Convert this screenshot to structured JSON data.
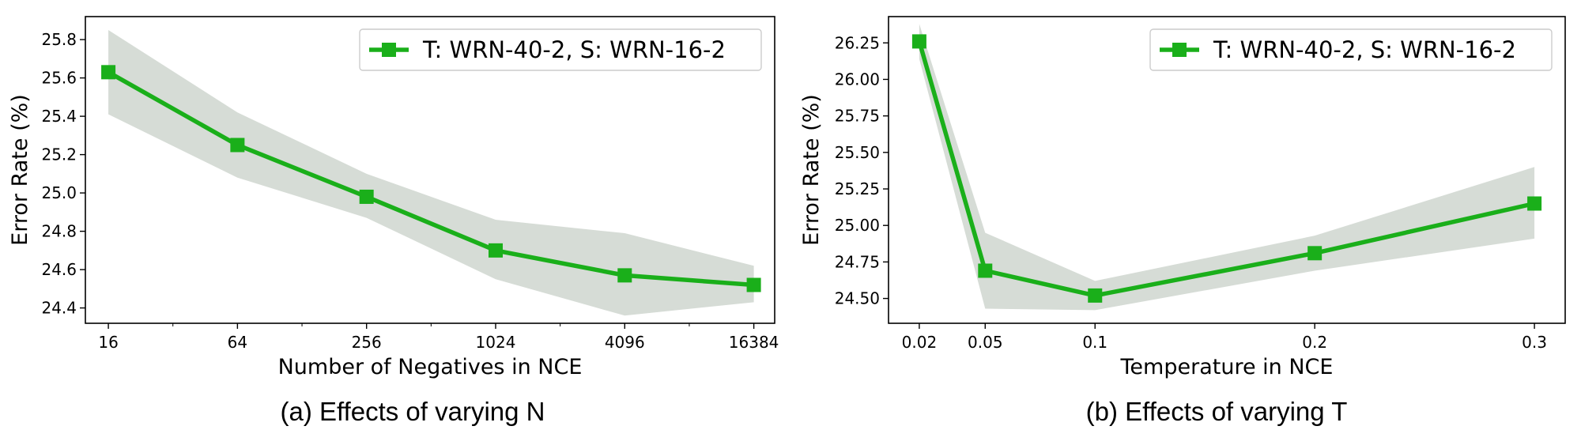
{
  "chart_data": [
    {
      "type": "line",
      "xscale": "log2",
      "xlabel": "Number of Negatives in NCE",
      "ylabel": "Error Rate (%)",
      "caption": "(a) Effects of varying N",
      "x": [
        16,
        64,
        256,
        1024,
        4096,
        16384
      ],
      "xticklabels": [
        "16",
        "64",
        "256",
        "1024",
        "4096",
        "16384"
      ],
      "yticks": [
        24.4,
        24.6,
        24.8,
        25.0,
        25.2,
        25.4,
        25.6,
        25.8
      ],
      "yticklabels": [
        "24.4",
        "24.6",
        "24.8",
        "25.0",
        "25.2",
        "25.4",
        "25.6",
        "25.8"
      ],
      "xlim": [
        12.5,
        20500
      ],
      "ylim": [
        24.32,
        25.92
      ],
      "series": [
        {
          "name": "T: WRN-40-2, S: WRN-16-2",
          "color": "#1aaf1a",
          "values": [
            25.63,
            25.25,
            24.98,
            24.7,
            24.57,
            24.52
          ],
          "upper": [
            25.85,
            25.42,
            25.1,
            24.86,
            24.79,
            24.62
          ],
          "lower": [
            25.41,
            25.08,
            24.87,
            24.55,
            24.36,
            24.43
          ]
        }
      ],
      "band_color": "#d6dcd6",
      "legend": "top-right",
      "grid": false
    },
    {
      "type": "line",
      "xscale": "linear",
      "xlabel": "Temperature in NCE",
      "ylabel": "Error Rate (%)",
      "caption": "(b) Effects of varying T",
      "x": [
        0.02,
        0.05,
        0.1,
        0.2,
        0.3
      ],
      "xticklabels": [
        "0.02",
        "0.05",
        "0.1",
        "0.2",
        "0.3"
      ],
      "yticks": [
        24.5,
        24.75,
        25.0,
        25.25,
        25.5,
        25.75,
        26.0,
        26.25
      ],
      "yticklabels": [
        "24.50",
        "24.75",
        "25.00",
        "25.25",
        "25.50",
        "25.75",
        "26.00",
        "26.25"
      ],
      "xlim": [
        0.006,
        0.314
      ],
      "ylim": [
        24.33,
        26.43
      ],
      "series": [
        {
          "name": "T: WRN-40-2, S: WRN-16-2",
          "color": "#1aaf1a",
          "values": [
            26.26,
            24.69,
            24.52,
            24.81,
            25.15
          ],
          "upper": [
            26.38,
            24.95,
            24.62,
            24.93,
            25.4
          ],
          "lower": [
            26.14,
            24.43,
            24.42,
            24.69,
            24.91
          ]
        }
      ],
      "band_color": "#d6dcd6",
      "legend": "top-right",
      "grid": false
    }
  ]
}
